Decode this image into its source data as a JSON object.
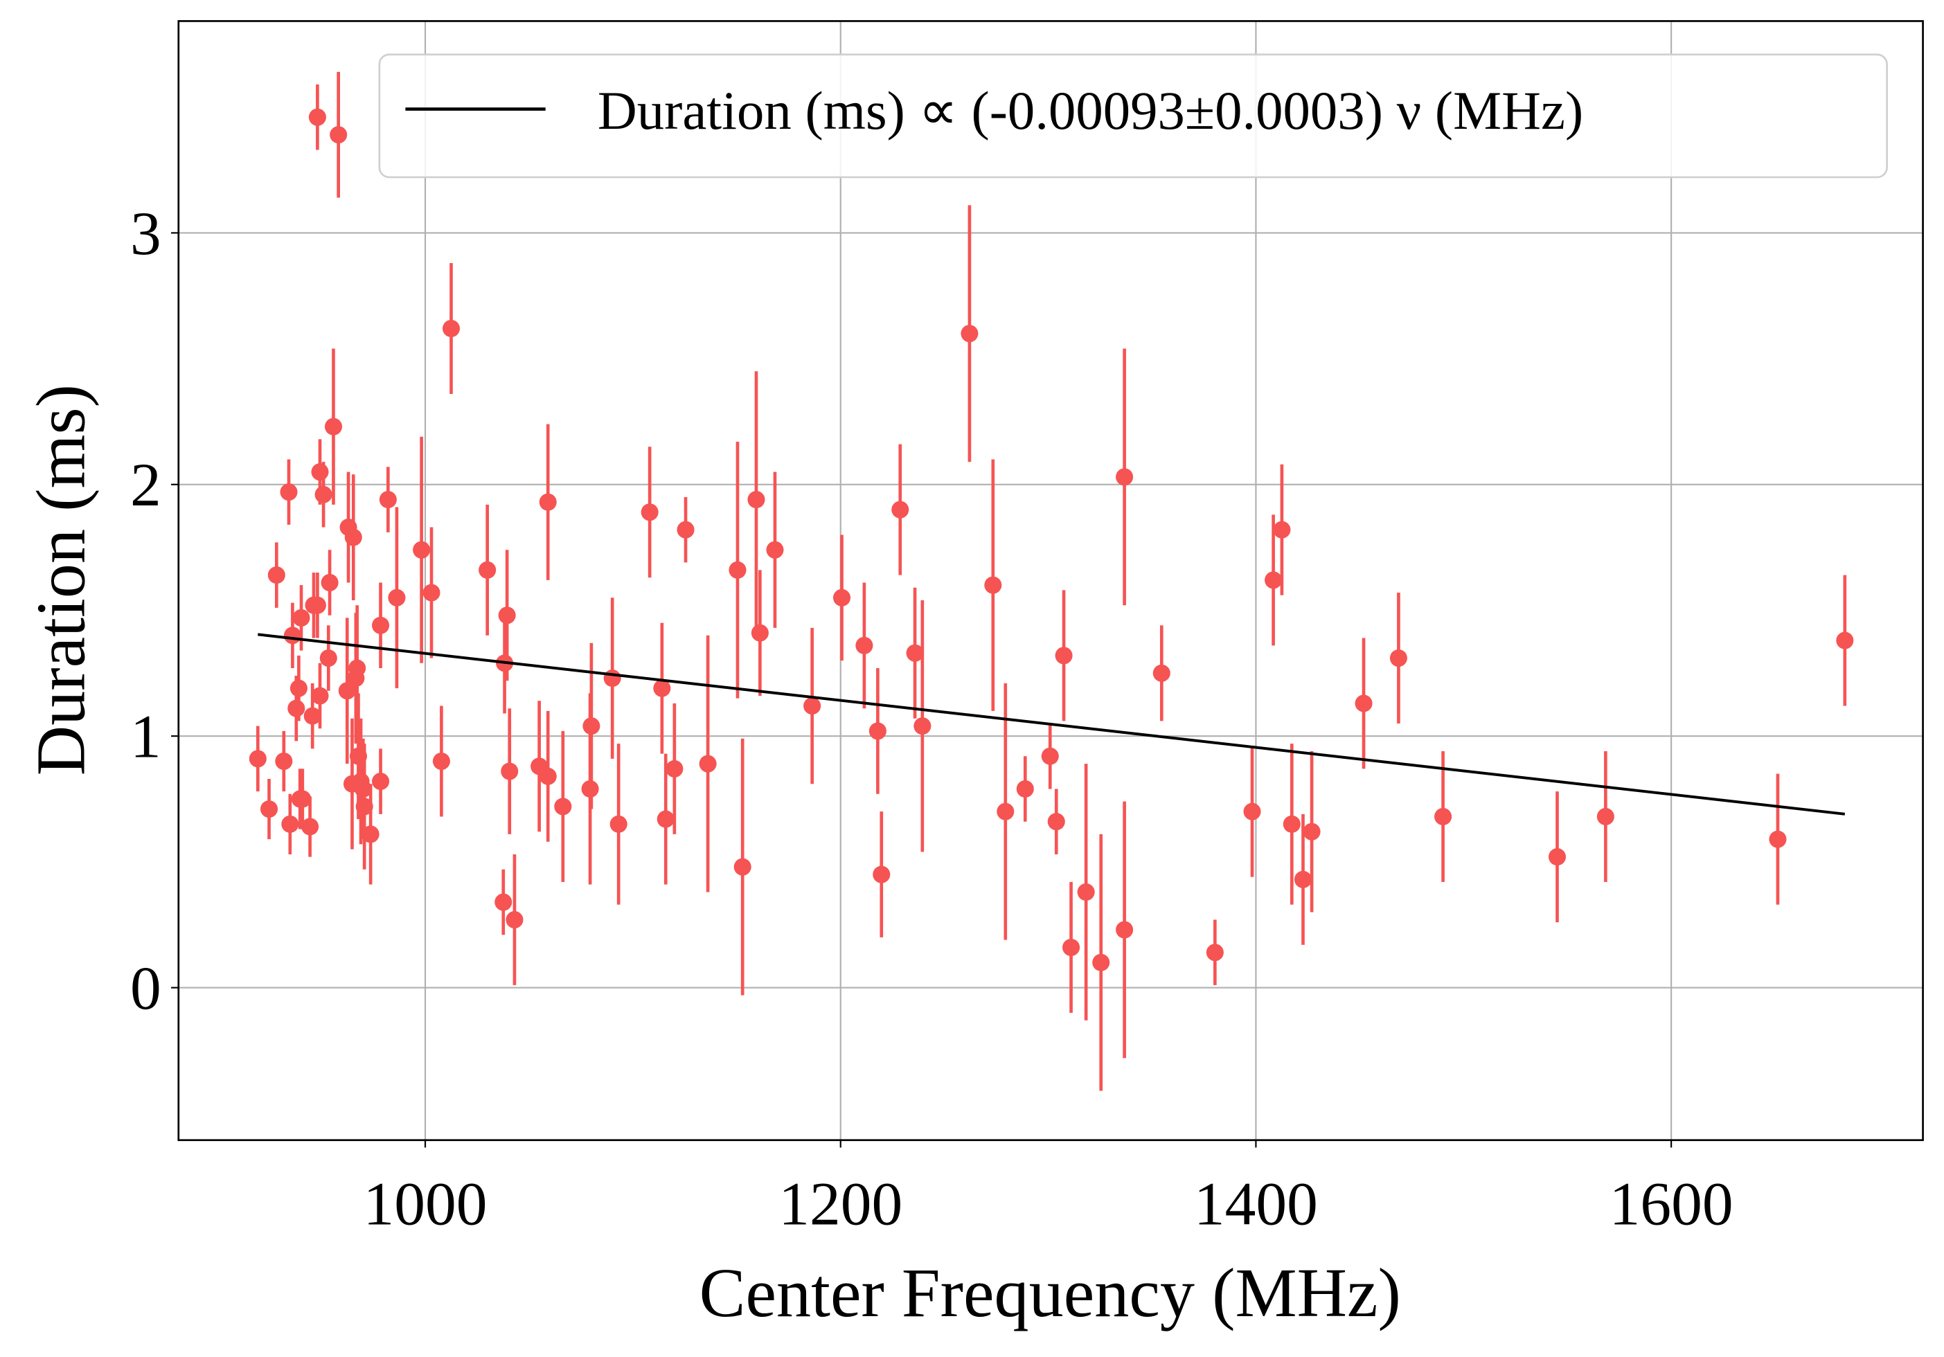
{
  "chart_data": {
    "type": "errorbar-scatter",
    "xlabel": "Center Frequency (MHz)",
    "ylabel": "Duration (ms)",
    "xlim": [
      881.2,
      1721.2
    ],
    "ylim": [
      -0.606,
      3.842
    ],
    "xticks": [
      1000,
      1200,
      1400,
      1600
    ],
    "yticks": [
      0,
      1,
      2,
      3
    ],
    "grid": true,
    "legend": "upper right",
    "fit": {
      "name": "Duration (ms) ∝ (-0.00093±0.0003) ν (MHz)",
      "color": "#000000",
      "x": [
        919.4,
        1683.6
      ],
      "values": [
        1.404,
        0.69
      ]
    },
    "series": [
      {
        "color": "#f65353",
        "x": [
          919.4,
          924.8,
          928.4,
          931.9,
          934.3,
          934.9,
          936.1,
          937.9,
          939.1,
          939.7,
          940.3,
          940.9,
          944.5,
          945.7,
          946.3,
          948.1,
          948.1,
          949.3,
          949.3,
          951.0,
          953.4,
          954.0,
          955.8,
          958.2,
          962.4,
          963.0,
          964.8,
          965.4,
          966.6,
          967.2,
          967.8,
          969.0,
          970.1,
          970.7,
          973.7,
          978.5,
          978.5,
          982.1,
          986.3,
          998.2,
          1003.0,
          1007.8,
          1012.5,
          1029.9,
          1037.6,
          1038.2,
          1039.4,
          1040.6,
          1043.0,
          1059.1,
          1054.9,
          1059.1,
          1066.3,
          1079.4,
          1080.0,
          1090.1,
          1093.1,
          1108.1,
          1114.0,
          1115.8,
          1120.0,
          1125.4,
          1136.1,
          1150.4,
          1152.8,
          1159.4,
          1161.2,
          1168.4,
          1186.3,
          1200.6,
          1211.4,
          1217.9,
          1219.7,
          1228.7,
          1235.8,
          1239.4,
          1262.1,
          1273.4,
          1279.4,
          1288.9,
          1300.9,
          1303.9,
          1307.5,
          1311.0,
          1318.2,
          1325.4,
          1336.7,
          1336.7,
          1354.6,
          1380.3,
          1398.2,
          1408.4,
          1412.5,
          1417.3,
          1422.7,
          1426.9,
          1451.9,
          1468.7,
          1490.1,
          1545.1,
          1568.4,
          1651.3,
          1683.6
        ],
        "values": [
          0.91,
          0.71,
          1.64,
          0.9,
          1.97,
          0.65,
          1.4,
          1.11,
          1.19,
          0.75,
          1.47,
          0.75,
          0.64,
          1.08,
          1.52,
          3.46,
          1.52,
          2.05,
          1.16,
          1.96,
          1.31,
          1.61,
          2.23,
          3.39,
          1.18,
          1.83,
          0.81,
          1.79,
          1.23,
          1.27,
          0.92,
          0.82,
          0.79,
          0.72,
          0.61,
          1.44,
          0.82,
          1.94,
          1.55,
          1.74,
          1.57,
          0.9,
          2.62,
          1.66,
          0.34,
          1.29,
          1.48,
          0.86,
          0.27,
          1.93,
          0.88,
          0.84,
          0.72,
          0.79,
          1.04,
          1.23,
          0.65,
          1.89,
          1.19,
          0.67,
          0.87,
          1.82,
          0.89,
          1.66,
          0.48,
          1.94,
          1.41,
          1.74,
          1.12,
          1.55,
          1.36,
          1.02,
          0.45,
          1.9,
          1.33,
          1.04,
          2.6,
          1.6,
          0.7,
          0.79,
          0.92,
          0.66,
          1.32,
          0.16,
          0.38,
          0.1,
          2.03,
          0.23,
          1.25,
          0.14,
          0.7,
          1.62,
          1.82,
          0.65,
          0.43,
          0.62,
          1.13,
          1.31,
          0.68,
          0.52,
          0.68,
          0.59,
          1.38
        ],
        "errors": [
          0.13,
          0.12,
          0.13,
          0.12,
          0.13,
          0.12,
          0.13,
          0.13,
          0.13,
          0.12,
          0.13,
          0.12,
          0.12,
          0.13,
          0.13,
          0.13,
          0.13,
          0.13,
          0.13,
          0.13,
          0.13,
          0.13,
          0.31,
          0.25,
          0.29,
          0.22,
          0.26,
          0.25,
          0.26,
          0.25,
          0.25,
          0.25,
          0.2,
          0.25,
          0.2,
          0.17,
          0.13,
          0.13,
          0.36,
          0.45,
          0.26,
          0.22,
          0.26,
          0.26,
          0.13,
          0.2,
          0.26,
          0.25,
          0.26,
          0.31,
          0.26,
          0.26,
          0.3,
          0.38,
          0.33,
          0.32,
          0.32,
          0.26,
          0.26,
          0.26,
          0.26,
          0.13,
          0.51,
          0.51,
          0.51,
          0.51,
          0.25,
          0.31,
          0.31,
          0.25,
          0.25,
          0.25,
          0.25,
          0.26,
          0.26,
          0.5,
          0.51,
          0.5,
          0.51,
          0.13,
          0.13,
          0.13,
          0.26,
          0.26,
          0.51,
          0.51,
          0.51,
          0.51,
          0.19,
          0.13,
          0.26,
          0.26,
          0.26,
          0.32,
          0.26,
          0.32,
          0.26,
          0.26,
          0.26,
          0.26,
          0.26,
          0.26,
          0.26
        ]
      }
    ]
  }
}
